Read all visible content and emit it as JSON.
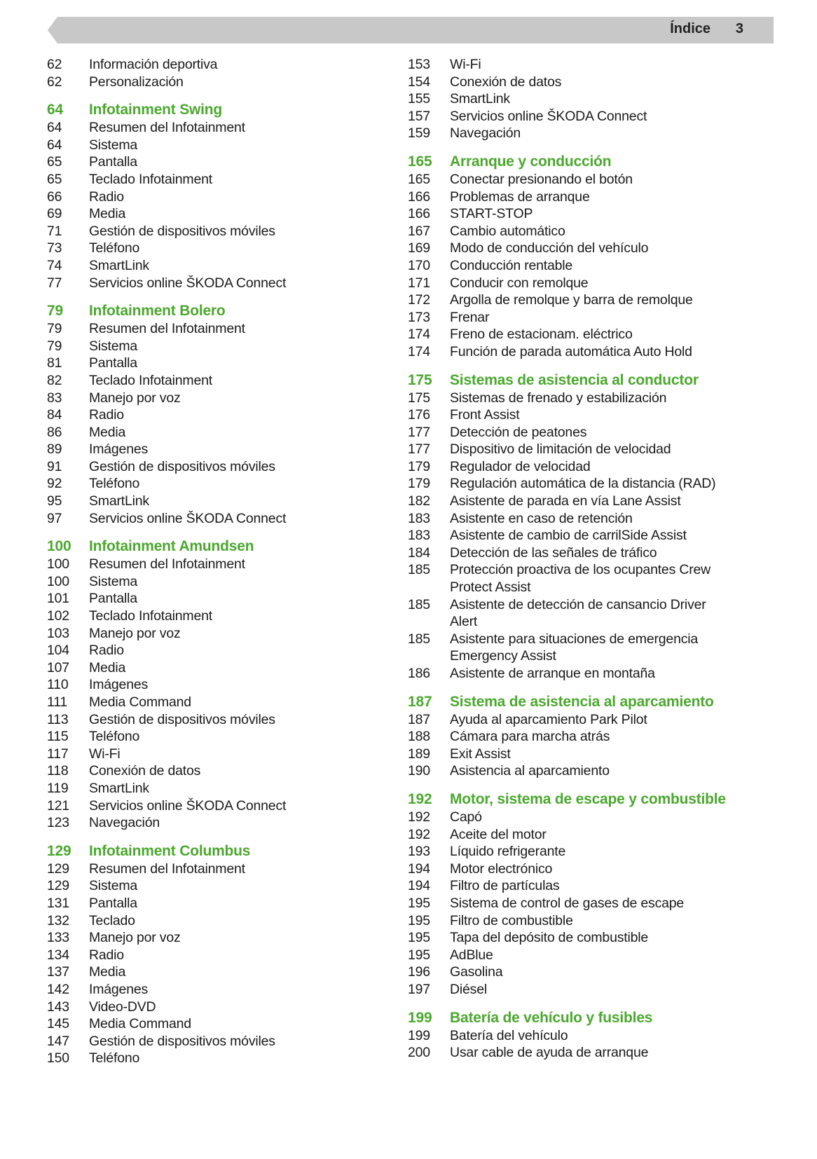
{
  "header": {
    "title": "Índice",
    "page": "3"
  },
  "colors": {
    "accent": "#4ba82e",
    "header_bar": "#c8c8c9"
  },
  "columns": [
    {
      "blocks": [
        {
          "heading": null,
          "entries": [
            [
              "62",
              "Información deportiva"
            ],
            [
              "62",
              "Personalización"
            ]
          ]
        },
        {
          "heading": [
            "64",
            "Infotainment Swing"
          ],
          "entries": [
            [
              "64",
              "Resumen del Infotainment"
            ],
            [
              "64",
              "Sistema"
            ],
            [
              "65",
              "Pantalla"
            ],
            [
              "65",
              "Teclado Infotainment"
            ],
            [
              "66",
              "Radio"
            ],
            [
              "69",
              "Media"
            ],
            [
              "71",
              "Gestión de dispositivos móviles"
            ],
            [
              "73",
              "Teléfono"
            ],
            [
              "74",
              "SmartLink"
            ],
            [
              "77",
              "Servicios online ŠKODA Connect"
            ]
          ]
        },
        {
          "heading": [
            "79",
            "Infotainment Bolero"
          ],
          "entries": [
            [
              "79",
              "Resumen del Infotainment"
            ],
            [
              "79",
              "Sistema"
            ],
            [
              "81",
              "Pantalla"
            ],
            [
              "82",
              "Teclado Infotainment"
            ],
            [
              "83",
              "Manejo por voz"
            ],
            [
              "84",
              "Radio"
            ],
            [
              "86",
              "Media"
            ],
            [
              "89",
              "Imágenes"
            ],
            [
              "91",
              "Gestión de dispositivos móviles"
            ],
            [
              "92",
              "Teléfono"
            ],
            [
              "95",
              "SmartLink"
            ],
            [
              "97",
              "Servicios online ŠKODA Connect"
            ]
          ]
        },
        {
          "heading": [
            "100",
            "Infotainment Amundsen"
          ],
          "entries": [
            [
              "100",
              "Resumen del Infotainment"
            ],
            [
              "100",
              "Sistema"
            ],
            [
              "101",
              "Pantalla"
            ],
            [
              "102",
              "Teclado Infotainment"
            ],
            [
              "103",
              "Manejo por voz"
            ],
            [
              "104",
              "Radio"
            ],
            [
              "107",
              "Media"
            ],
            [
              "110",
              "Imágenes"
            ],
            [
              "111",
              "Media Command"
            ],
            [
              "113",
              "Gestión de dispositivos móviles"
            ],
            [
              "115",
              "Teléfono"
            ],
            [
              "117",
              "Wi-Fi"
            ],
            [
              "118",
              "Conexión de datos"
            ],
            [
              "119",
              "SmartLink"
            ],
            [
              "121",
              "Servicios online ŠKODA Connect"
            ],
            [
              "123",
              "Navegación"
            ]
          ]
        },
        {
          "heading": [
            "129",
            "Infotainment Columbus"
          ],
          "entries": [
            [
              "129",
              "Resumen del Infotainment"
            ],
            [
              "129",
              "Sistema"
            ],
            [
              "131",
              "Pantalla"
            ],
            [
              "132",
              "Teclado"
            ],
            [
              "133",
              "Manejo por voz"
            ],
            [
              "134",
              "Radio"
            ],
            [
              "137",
              "Media"
            ],
            [
              "142",
              "Imágenes"
            ],
            [
              "143",
              "Video-DVD"
            ],
            [
              "145",
              "Media Command"
            ],
            [
              "147",
              "Gestión de dispositivos móviles"
            ],
            [
              "150",
              "Teléfono"
            ]
          ]
        }
      ]
    },
    {
      "blocks": [
        {
          "heading": null,
          "entries": [
            [
              "153",
              "Wi-Fi"
            ],
            [
              "154",
              "Conexión de datos"
            ],
            [
              "155",
              "SmartLink"
            ],
            [
              "157",
              "Servicios online ŠKODA Connect"
            ],
            [
              "159",
              "Navegación"
            ]
          ]
        },
        {
          "heading": [
            "165",
            "Arranque y conducción"
          ],
          "entries": [
            [
              "165",
              "Conectar presionando el botón"
            ],
            [
              "166",
              "Problemas de arranque"
            ],
            [
              "166",
              "START-STOP"
            ],
            [
              "167",
              "Cambio automático"
            ],
            [
              "169",
              "Modo de conducción del vehículo"
            ],
            [
              "170",
              "Conducción rentable"
            ],
            [
              "171",
              "Conducir con remolque"
            ],
            [
              "172",
              "Argolla de remolque y barra de remolque"
            ],
            [
              "173",
              "Frenar"
            ],
            [
              "174",
              "Freno de estacionam. eléctrico"
            ],
            [
              "174",
              "Función de parada automática Auto Hold"
            ]
          ]
        },
        {
          "heading": [
            "175",
            "Sistemas de asistencia al conductor"
          ],
          "entries": [
            [
              "175",
              "Sistemas de frenado y estabilización"
            ],
            [
              "176",
              "Front Assist"
            ],
            [
              "177",
              "Detección de peatones"
            ],
            [
              "177",
              "Dispositivo de limitación de velocidad"
            ],
            [
              "179",
              "Regulador de velocidad"
            ],
            [
              "179",
              "Regulación automática de la distancia (RAD)"
            ],
            [
              "182",
              "Asistente de parada en vía Lane Assist"
            ],
            [
              "183",
              "Asistente en caso de retención"
            ],
            [
              "183",
              "Asistente de cambio de carrilSide Assist"
            ],
            [
              "184",
              "Detección de las señales de tráfico"
            ],
            [
              "185",
              "Protección proactiva de los ocupantes Crew\nProtect Assist"
            ],
            [
              "185",
              "Asistente de detección de cansancio Driver\nAlert"
            ],
            [
              "185",
              "Asistente para situaciones de emergencia\nEmergency Assist"
            ],
            [
              "186",
              "Asistente de arranque en montaña"
            ]
          ]
        },
        {
          "heading": [
            "187",
            "Sistema de asistencia al aparcamiento"
          ],
          "entries": [
            [
              "187",
              "Ayuda al aparcamiento Park Pilot"
            ],
            [
              "188",
              "Cámara para marcha atrás"
            ],
            [
              "189",
              "Exit Assist"
            ],
            [
              "190",
              "Asistencia al aparcamiento"
            ]
          ]
        },
        {
          "heading": [
            "192",
            "Motor, sistema de escape y combustible"
          ],
          "entries": [
            [
              "192",
              "Capó"
            ],
            [
              "192",
              "Aceite del motor"
            ],
            [
              "193",
              "Líquido refrigerante"
            ],
            [
              "194",
              "Motor electrónico"
            ],
            [
              "194",
              "Filtro de partículas"
            ],
            [
              "195",
              "Sistema de control de gases de escape"
            ],
            [
              "195",
              "Filtro de combustible"
            ],
            [
              "195",
              "Tapa del depósito de combustible"
            ],
            [
              "195",
              "AdBlue"
            ],
            [
              "196",
              "Gasolina"
            ],
            [
              "197",
              "Diésel"
            ]
          ]
        },
        {
          "heading": [
            "199",
            "Batería de vehículo y fusibles"
          ],
          "entries": [
            [
              "199",
              "Batería del vehículo"
            ],
            [
              "200",
              "Usar cable de ayuda de arranque"
            ]
          ]
        }
      ]
    }
  ]
}
